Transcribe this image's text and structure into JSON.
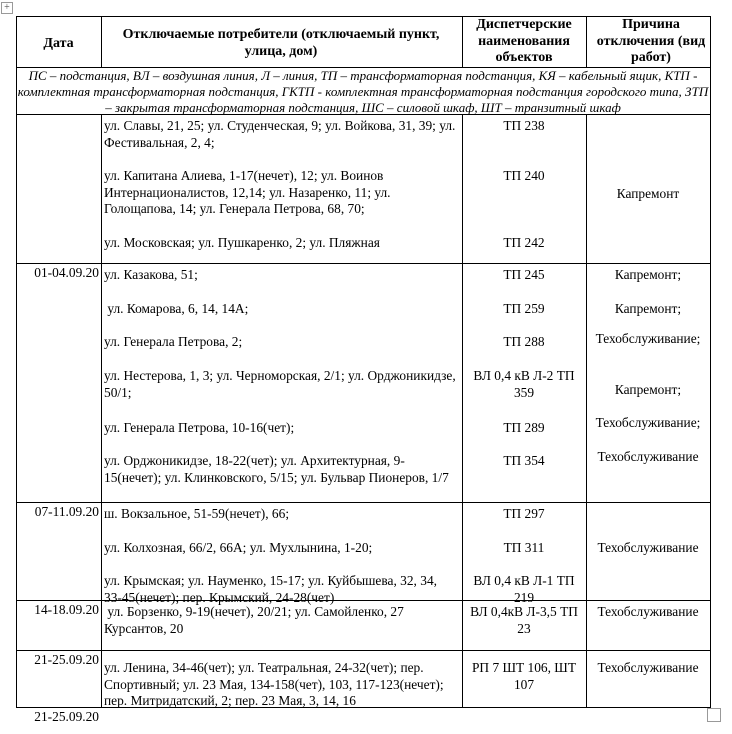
{
  "header": {
    "date": "Дата",
    "consumers": "Отключаемые потребители (отключаемый пункт, улица, дом)",
    "objects": "Диспетчерские наименования объектов",
    "reason": "Причина отключения (вид работ)"
  },
  "legend": "ПС – подстанция, ВЛ – воздушная линия, Л – линия, ТП – трансформаторная подстанция, КЯ – кабельный ящик, КТП - комплектная трансформаторная подстанция, ГКТП - комплектная трансформаторная подстанция городского типа, ЗТП – закрытая трансформаторная подстанция, ШС – силовой шкаф, ШТ – транзитный шкаф",
  "groups": [
    {
      "date": "01-04.09.20",
      "reason": "Капремонт",
      "items": [
        {
          "consumers": "ул. Славы, 21, 25; ул. Студенческая, 9; ул. Войкова, 31, 39; ул. Фестивальная, 2, 4;",
          "object": "ТП 238"
        },
        {
          "consumers": "ул. Капитана Алиева, 1-17(нечет), 12; ул. Воинов Интернационалистов, 12,14; ул. Назаренко, 11; ул. Голощапова, 14; ул. Генерала Петрова, 68, 70;",
          "object": "ТП 240"
        },
        {
          "consumers": "ул. Московская; ул. Пушкаренко, 2; ул. Пляжная",
          "object": "ТП 242"
        }
      ]
    },
    {
      "date": "07-11.09.20",
      "items": [
        {
          "consumers": "ул. Казакова, 51;",
          "object": "ТП 245",
          "reason": "Капремонт;"
        },
        {
          "consumers": " ул. Комарова, 6, 14, 14А;",
          "object": "ТП 259",
          "reason": "Капремонт;"
        },
        {
          "consumers": "ул. Генерала Петрова, 2;",
          "object": "ТП 288",
          "reason": "Техобслуживание;"
        },
        {
          "consumers": "ул. Нестерова, 1, 3; ул. Черноморская, 2/1; ул. Орджоникидзе, 50/1;",
          "object": "ВЛ 0,4 кВ Л-2 ТП 359",
          "reason": "Капремонт;"
        },
        {
          "consumers": "ул. Генерала Петрова, 10-16(чет);",
          "object": "ТП 289",
          "reason": "Техобслуживание;"
        },
        {
          "consumers": "ул. Орджоникидзе, 18-22(чет); ул. Архитектурная, 9-15(нечет); ул. Клинковского, 5/15; ул. Бульвар Пионеров, 1/7",
          "object": "ТП 354",
          "reason": "Техобслуживание"
        }
      ]
    },
    {
      "date": "14-18.09.20",
      "reason": "Техобслуживание",
      "items": [
        {
          "consumers": "ш. Вокзальное, 51-59(нечет), 66;",
          "object": "ТП 297"
        },
        {
          "consumers": "ул. Колхозная, 66/2, 66А; ул. Мухлынина, 1-20;",
          "object": "ТП 311"
        },
        {
          "consumers": "ул. Крымская; ул. Науменко, 15-17; ул. Куйбышева, 32, 34, 33-45(нечет); пер. Крымский, 24-28(чет)",
          "object": "ВЛ 0,4 кВ Л-1 ТП 219"
        }
      ]
    },
    {
      "date": "21-25.09.20",
      "reason": "Техобслуживание",
      "items": [
        {
          "consumers": " ул. Борзенко, 9-19(нечет), 20/21; ул. Самойленко, 27 Курсантов, 20",
          "object": "ВЛ 0,4кВ Л-3,5 ТП 23"
        }
      ]
    },
    {
      "date": "21-25.09.20",
      "reason": "Техобслуживание",
      "items": [
        {
          "consumers": "ул. Ленина, 34-46(чет); ул. Театральная, 24-32(чет); пер. Спортивный; ул. 23 Мая, 134-158(чет), 103, 117-123(нечет); пер. Митридатский, 2; пер. 23 Мая, 3, 14, 16",
          "object": "РП 7 ШТ 106, ШТ 107"
        }
      ]
    }
  ]
}
